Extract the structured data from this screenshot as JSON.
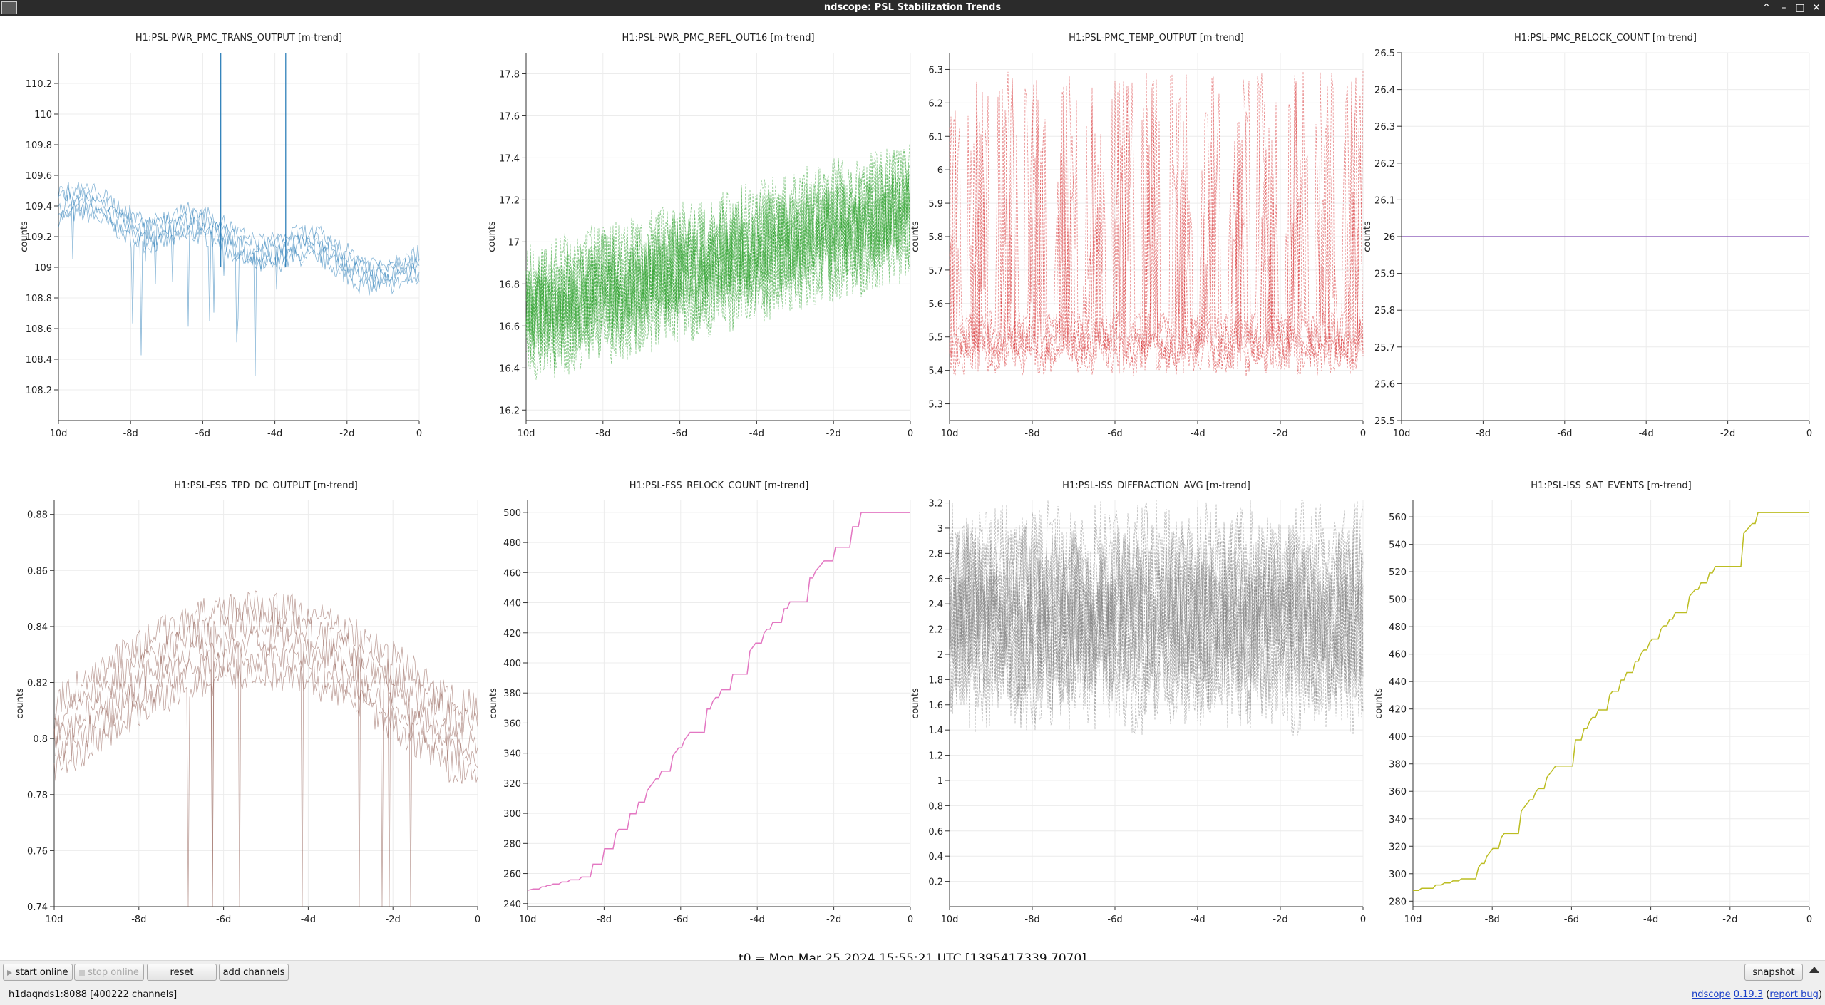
{
  "window": {
    "title": "ndscope: PSL Stabilization Trends",
    "buttons": [
      "⌃",
      "–",
      "□",
      "✕"
    ]
  },
  "y_axis_label": "counts",
  "x_ticks": [
    "10d",
    "-8d",
    "-6d",
    "-4d",
    "-2d",
    "0"
  ],
  "plots": [
    {
      "title": "H1:PSL-PWR_PMC_TRANS_OUTPUT [m-trend]",
      "color": "#1f77b4",
      "style": "noisy-dips",
      "yticks": [
        "108.2",
        "108.4",
        "108.6",
        "108.8",
        "109",
        "109.2",
        "109.4",
        "109.6",
        "109.8",
        "110",
        "110.2"
      ],
      "ymin": 108.0,
      "ymax": 110.4
    },
    {
      "title": "H1:PSL-PWR_PMC_REFL_OUT16 [m-trend]",
      "color": "#2ca02c",
      "style": "band",
      "yticks": [
        "16.2",
        "16.4",
        "16.6",
        "16.8",
        "17",
        "17.2",
        "17.4",
        "17.6",
        "17.8"
      ],
      "ymin": 16.15,
      "ymax": 17.9
    },
    {
      "title": "H1:PSL-PMC_TEMP_OUTPUT [m-trend]",
      "color": "#d62728",
      "style": "spikes",
      "yticks": [
        "5.3",
        "5.4",
        "5.5",
        "5.6",
        "5.7",
        "5.8",
        "5.9",
        "6",
        "6.1",
        "6.2",
        "6.3"
      ],
      "ymin": 5.25,
      "ymax": 6.35
    },
    {
      "title": "H1:PSL-PMC_RELOCK_COUNT [m-trend]",
      "color": "#9467bd",
      "style": "flat",
      "yticks": [
        "25.5",
        "25.6",
        "25.7",
        "25.8",
        "25.9",
        "26",
        "26.1",
        "26.2",
        "26.3",
        "26.4",
        "26.5"
      ],
      "ymin": 25.5,
      "ymax": 26.5
    },
    {
      "title": "H1:PSL-FSS_TPD_DC_OUTPUT [m-trend]",
      "color": "#8c564b",
      "style": "arch",
      "yticks": [
        "0.74",
        "0.76",
        "0.78",
        "0.8",
        "0.82",
        "0.84",
        "0.86",
        "0.88"
      ],
      "ymin": 0.74,
      "ymax": 0.885
    },
    {
      "title": "H1:PSL-FSS_RELOCK_COUNT [m-trend]",
      "color": "#e377c2",
      "style": "steps",
      "yticks": [
        "240",
        "260",
        "280",
        "300",
        "320",
        "340",
        "360",
        "380",
        "400",
        "420",
        "440",
        "460",
        "480",
        "500"
      ],
      "ymin": 238,
      "ymax": 508
    },
    {
      "title": "H1:PSL-ISS_DIFFRACTION_AVG [m-trend]",
      "color": "#7f7f7f",
      "style": "wideband",
      "yticks": [
        "0.2",
        "0.4",
        "0.6",
        "0.8",
        "1",
        "1.2",
        "1.4",
        "1.6",
        "1.8",
        "2",
        "2.2",
        "2.4",
        "2.6",
        "2.8",
        "3",
        "3.2"
      ],
      "ymin": 0.0,
      "ymax": 3.22
    },
    {
      "title": "H1:PSL-ISS_SAT_EVENTS [m-trend]",
      "color": "#bcbd22",
      "style": "steps",
      "yticks": [
        "280",
        "300",
        "320",
        "340",
        "360",
        "380",
        "400",
        "420",
        "440",
        "460",
        "480",
        "500",
        "520",
        "540",
        "560"
      ],
      "ymin": 276,
      "ymax": 572
    }
  ],
  "t0": "t0 = Mon Mar 25 2024 15:55:21 UTC [1395417339.7070]",
  "controls": {
    "start_online": "start online",
    "stop_online": "stop online",
    "reset": "reset",
    "add_channels": "add channels",
    "snapshot": "snapshot"
  },
  "status": "h1daqnds1:8088  [400222 channels]",
  "version": {
    "name": "ndscope",
    "number": "0.19.3",
    "report": "report bug"
  }
}
